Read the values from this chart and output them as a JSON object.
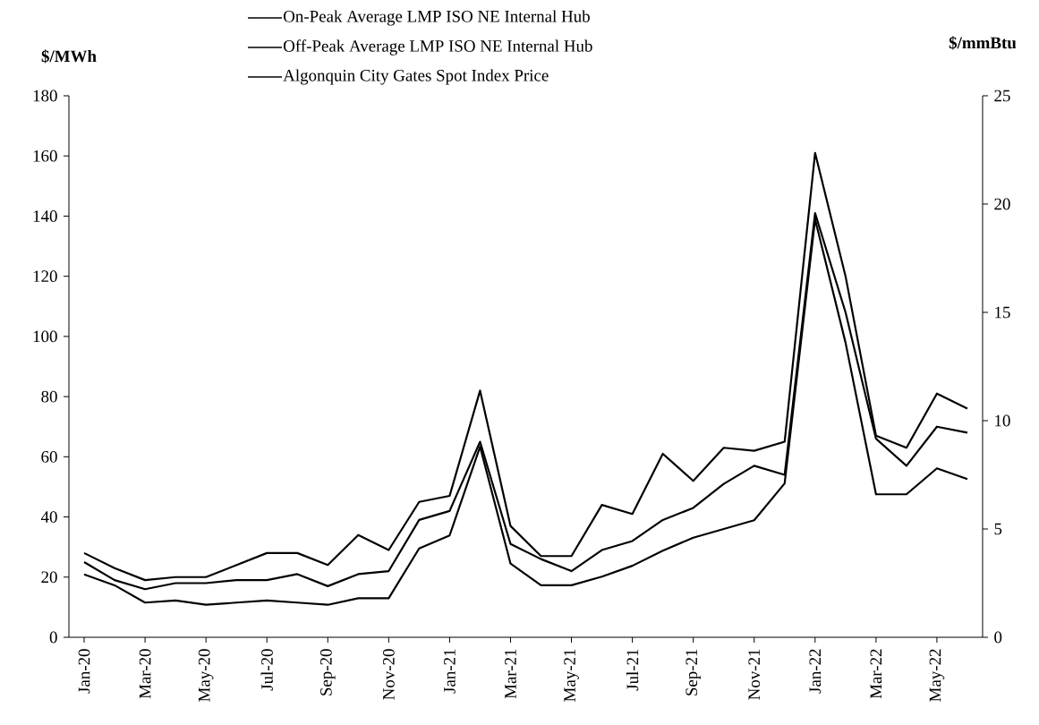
{
  "chart_data": {
    "type": "line",
    "categories": [
      "Jan-20",
      null,
      "Mar-20",
      null,
      "May-20",
      null,
      "Jul-20",
      null,
      "Sep-20",
      null,
      "Nov-20",
      null,
      "Jan-21",
      null,
      "Mar-21",
      null,
      "May-21",
      null,
      "Jul-21",
      null,
      "Sep-21",
      null,
      "Nov-21",
      null,
      "Jan-22",
      null,
      "Mar-22",
      null,
      "May-22",
      null
    ],
    "series": [
      {
        "name": "On-Peak Average LMP ISO NE Internal Hub",
        "color": "#000000",
        "values": [
          28,
          23,
          19,
          20,
          20,
          24,
          28,
          28,
          24,
          34,
          29,
          45,
          47,
          82,
          37,
          27,
          27,
          44,
          41,
          61,
          52,
          63,
          62,
          65,
          161,
          120,
          67,
          63,
          81,
          76
        ]
      },
      {
        "name": "Off-Peak Average LMP ISO NE Internal Hub",
        "color": "#000000",
        "values": [
          25,
          19,
          16,
          18,
          18,
          19,
          19,
          21,
          17,
          21,
          22,
          39,
          42,
          65,
          31,
          26,
          22,
          29,
          32,
          39,
          43,
          51,
          57,
          54,
          141,
          108,
          66,
          57,
          70,
          68
        ]
      },
      {
        "name": "Algonquin City Gates Spot Index Price",
        "color": "#000000",
        "axis": "y2",
        "values": [
          2.9,
          2.4,
          1.6,
          1.7,
          1.5,
          1.6,
          1.7,
          1.6,
          1.5,
          1.8,
          1.8,
          4.1,
          4.7,
          8.8,
          3.4,
          2.4,
          2.4,
          2.8,
          3.3,
          4.0,
          4.6,
          5.0,
          5.4,
          7.1,
          19.3,
          13.6,
          6.6,
          6.6,
          7.8,
          7.3
        ]
      }
    ],
    "ylabel": "$/MWh",
    "y2label": "$/mmBtu",
    "ylim": [
      0,
      180
    ],
    "yticks": [
      0,
      20,
      40,
      60,
      80,
      100,
      120,
      140,
      160,
      180
    ],
    "y2lim": [
      0,
      25
    ],
    "y2ticks": [
      0,
      5,
      10,
      15,
      20,
      25
    ],
    "legend": "top",
    "marker": "none",
    "line_style": "solid"
  }
}
